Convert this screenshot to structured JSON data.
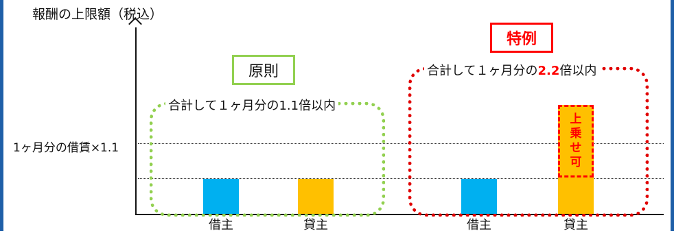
{
  "y_axis_title": "報酬の上限額（税込）",
  "y_reference_label": "1ヶ月分の借賃×1.1",
  "principle": {
    "title": "原則",
    "caption": "合計して１ヶ月分の1.1倍以内",
    "labels": [
      "借主",
      "貸主"
    ]
  },
  "exception": {
    "title": "特例",
    "caption_before": "合計して１ヶ月分の",
    "caption_highlight": "2.2",
    "caption_after": "倍以内",
    "labels": [
      "借主",
      "貸主"
    ],
    "surcharge_chars": [
      "上",
      "乗",
      "せ",
      "可"
    ]
  },
  "colors": {
    "frame": "#1f5fa8",
    "borrower": "#00b0f0",
    "lender": "#ffc000",
    "principle": "#92d050",
    "exception": "#ff0000"
  }
}
